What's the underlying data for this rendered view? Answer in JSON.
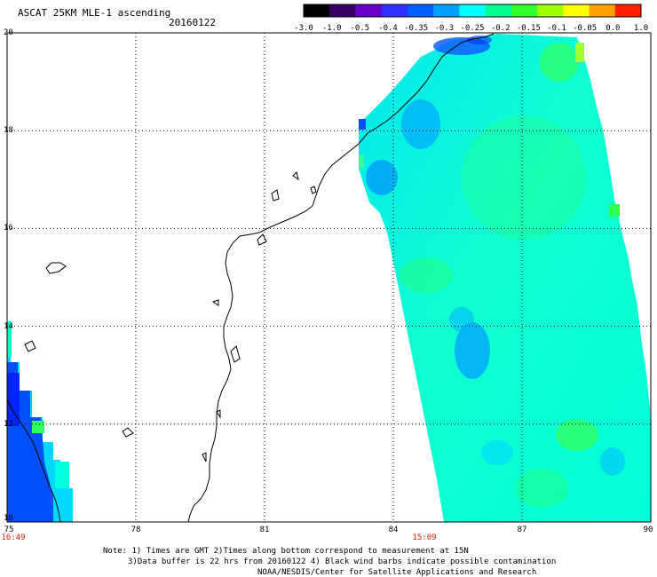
{
  "header": {
    "title": "ASCAT 25KM MLE-1 ascending",
    "date": "20160122"
  },
  "colorbar": {
    "labels": [
      "-3.0",
      "-1.0",
      "-0.5",
      "-0.4",
      "-0.35",
      "-0.3",
      "-0.25",
      "-0.2",
      "-0.15",
      "-0.1",
      "-0.05",
      "0.0",
      "1.0"
    ],
    "colors": [
      "#000000",
      "#3a0066",
      "#6a00c8",
      "#3030ff",
      "#0060ff",
      "#00a0ff",
      "#00ffff",
      "#00ff90",
      "#30ff30",
      "#a0ff00",
      "#ffff00",
      "#ffa000",
      "#ff2000"
    ]
  },
  "axes": {
    "x_ticks": [
      "75",
      "78",
      "81",
      "84",
      "87",
      "90"
    ],
    "y_ticks": [
      "20",
      "18",
      "16",
      "14",
      "12",
      "10"
    ],
    "lon_range": [
      75,
      90
    ],
    "lat_range": [
      10,
      20
    ]
  },
  "times": {
    "left": "16:49",
    "center": "15:09"
  },
  "notes": {
    "line1": "Note: 1) Times are GMT 2)Times along bottom correspond to measurement at 15N",
    "line2": "3)Data buffer is 22 hrs from 20160122 4) Black wind barbs indicate possible contamination",
    "line3": "NOAA/NESDIS/Center for Satellite Applications and Research"
  }
}
